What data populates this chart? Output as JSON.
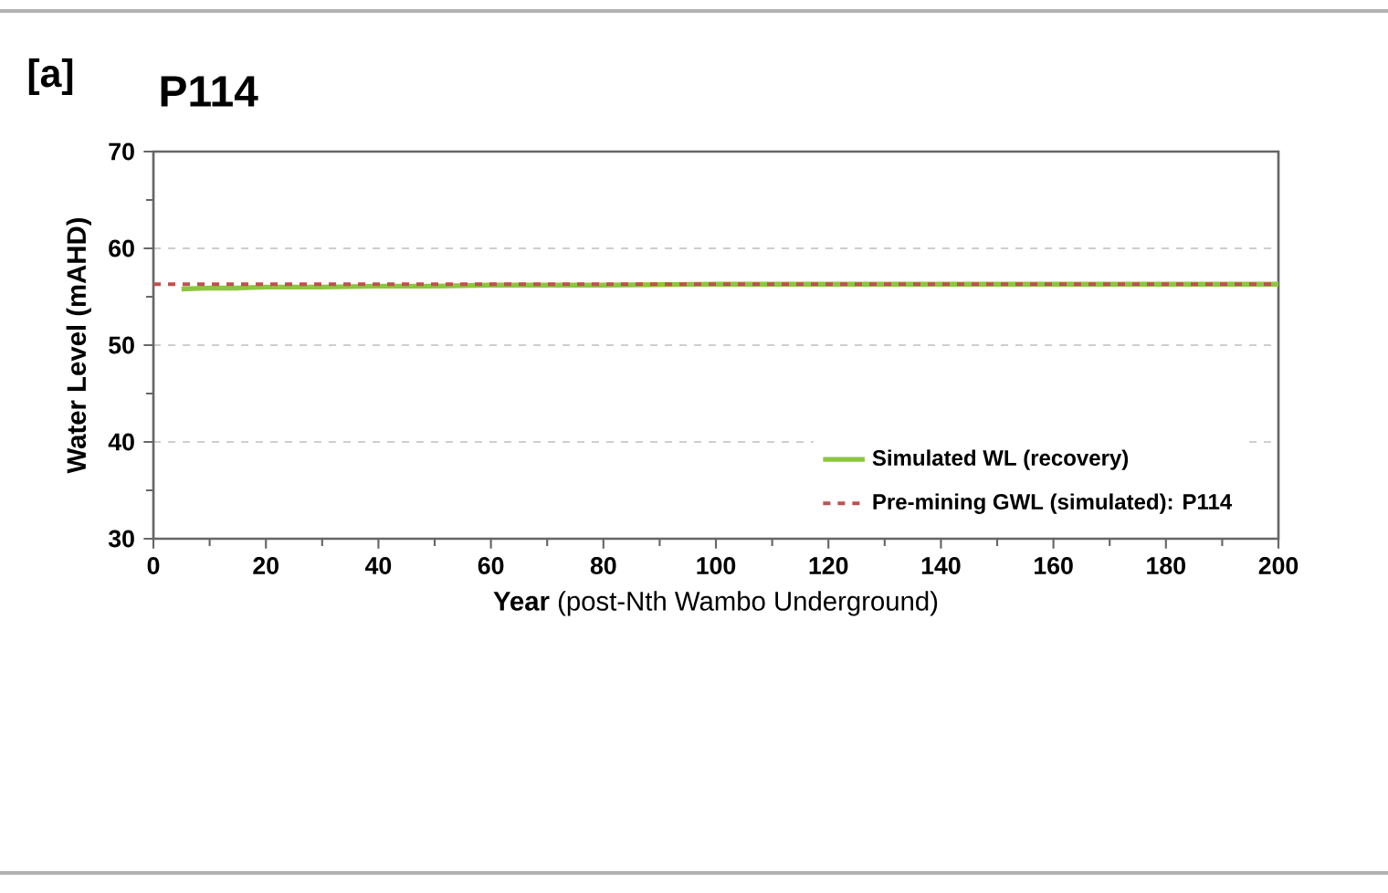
{
  "chart_data": {
    "type": "line",
    "title": "P114",
    "xlabel": "**Year** (post-Nth Wambo Underground)",
    "ylabel": "Water Level (mAHD)",
    "annotations": [
      "[a]"
    ],
    "series": [
      {
        "name": "Simulated WL (recovery)",
        "color": "#8cc63f",
        "x": [
          5,
          10,
          15,
          20,
          30,
          40,
          50,
          60,
          80,
          100,
          120,
          140,
          160,
          180,
          200
        ],
        "values": [
          55.8,
          55.9,
          55.9,
          56.0,
          56.0,
          56.1,
          56.1,
          56.2,
          56.2,
          56.3,
          56.3,
          56.3,
          56.3,
          56.3,
          56.3
        ]
      }
    ],
    "ref_lines": [
      {
        "axis": "y",
        "value": 56.3,
        "label": "Pre-mining GWL (simulated): P114",
        "color": "#c0504d",
        "line_style": "dashed"
      }
    ],
    "xlim": [
      0,
      200
    ],
    "xticks": [
      0,
      20,
      40,
      60,
      80,
      100,
      120,
      140,
      160,
      180,
      200
    ],
    "ylim": [
      30,
      70
    ],
    "yticks": [
      30,
      40,
      50,
      60,
      70
    ],
    "grid": "y",
    "legend": "bottom right",
    "marker": "none",
    "line_style": "solid"
  }
}
